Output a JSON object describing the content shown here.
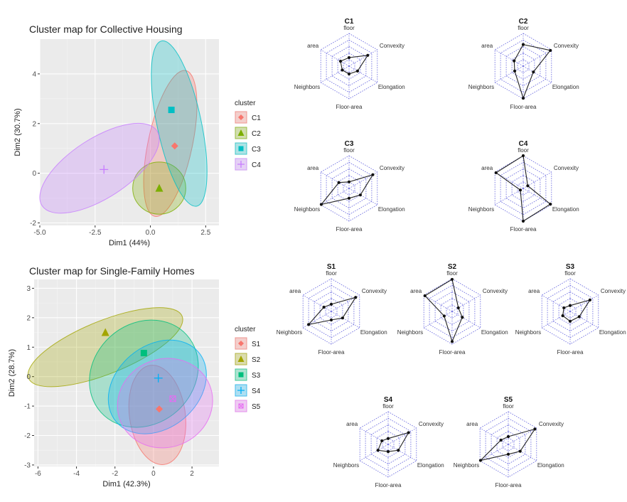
{
  "chart_data": [
    {
      "type": "scatter",
      "id": "collective",
      "title": "Cluster map for Collective Housing",
      "xlabel": "Dim1 (44%)",
      "ylabel": "Dim2 (30.7%)",
      "xlim": [
        -5.0,
        3.1
      ],
      "ylim": [
        -2.1,
        5.4
      ],
      "xticks": [
        -5.0,
        -2.5,
        0.0,
        2.5
      ],
      "xtick_labels": [
        "-5.0",
        "-2.5",
        "0.0",
        "2.5"
      ],
      "yticks": [
        -2,
        0,
        2,
        4
      ],
      "ytick_labels": [
        "-2",
        "0",
        "2",
        "4"
      ],
      "legend_title": "cluster",
      "legend_position": "right",
      "series": [
        {
          "name": "C1",
          "color": "#F8766D",
          "marker": "diamond",
          "centroid": [
            1.1,
            1.1
          ],
          "ellipse": {
            "center": [
              0.9,
              1.2
            ],
            "rx": 1.0,
            "ry": 3.0,
            "angle_deg": 12
          }
        },
        {
          "name": "C2",
          "color": "#7CAE00",
          "marker": "triangle",
          "centroid": [
            0.4,
            -0.6
          ],
          "ellipse": {
            "center": [
              0.4,
              -0.6
            ],
            "rx": 1.2,
            "ry": 1.05,
            "angle_deg": 0
          }
        },
        {
          "name": "C3",
          "color": "#00BFC4",
          "marker": "square",
          "centroid": [
            0.95,
            2.55
          ],
          "ellipse": {
            "center": [
              1.3,
              2.0
            ],
            "rx": 1.0,
            "ry": 3.4,
            "angle_deg": -12
          }
        },
        {
          "name": "C4",
          "color": "#C77CFF",
          "marker": "cross",
          "centroid": [
            -2.1,
            0.15
          ],
          "ellipse": {
            "center": [
              -2.3,
              0.2
            ],
            "rx": 3.1,
            "ry": 1.2,
            "angle_deg": -33
          }
        }
      ]
    },
    {
      "type": "scatter",
      "id": "singlefamily",
      "title": "Cluster map for Single-Family Homes",
      "xlabel": "Dim1 (42.3%)",
      "ylabel": "Dim2 (28.7%)",
      "xlim": [
        -6.2,
        3.4
      ],
      "ylim": [
        -3.05,
        3.3
      ],
      "xticks": [
        -6,
        -4,
        -2,
        0,
        2
      ],
      "xtick_labels": [
        "-6",
        "-4",
        "-2",
        "0",
        "2"
      ],
      "yticks": [
        -3,
        -2,
        -1,
        0,
        1,
        2,
        3
      ],
      "ytick_labels": [
        "-3",
        "-2",
        "-1",
        "0",
        "1",
        "2",
        "3"
      ],
      "legend_title": "cluster",
      "legend_position": "right",
      "series": [
        {
          "name": "S1",
          "color": "#F8766D",
          "marker": "diamond",
          "centroid": [
            0.3,
            -1.1
          ],
          "ellipse": {
            "center": [
              0.2,
              -1.3
            ],
            "rx": 1.45,
            "ry": 1.7,
            "angle_deg": -8
          }
        },
        {
          "name": "S2",
          "color": "#A3A500",
          "marker": "triangle",
          "centroid": [
            -2.5,
            1.5
          ],
          "ellipse": {
            "center": [
              -2.5,
              1.0
            ],
            "rx": 4.3,
            "ry": 0.9,
            "angle_deg": -22
          }
        },
        {
          "name": "S3",
          "color": "#00BF7D",
          "marker": "square",
          "centroid": [
            -0.5,
            0.8
          ],
          "ellipse": {
            "center": [
              -0.5,
              0.1
            ],
            "rx": 3.0,
            "ry": 1.7,
            "angle_deg": -42
          }
        },
        {
          "name": "S4",
          "color": "#00B0F6",
          "marker": "cross",
          "centroid": [
            0.25,
            -0.05
          ],
          "ellipse": {
            "center": [
              0.2,
              -0.35
            ],
            "rx": 2.8,
            "ry": 1.4,
            "angle_deg": -40
          }
        },
        {
          "name": "S5",
          "color": "#E76BF3",
          "marker": "boxcross",
          "centroid": [
            1.0,
            -0.75
          ],
          "ellipse": {
            "center": [
              0.6,
              -0.9
            ],
            "rx": 2.5,
            "ry": 1.5,
            "angle_deg": -22
          }
        }
      ]
    },
    {
      "type": "radar",
      "axes": [
        "floor",
        "Convexity",
        "Elongation",
        "Floor-area",
        "Neighbors",
        "area"
      ],
      "scale_max": 5,
      "charts": [
        {
          "name": "C1",
          "values": [
            1.3,
            3.3,
            1.5,
            1.2,
            1.2,
            1.5
          ]
        },
        {
          "name": "C2",
          "values": [
            3.3,
            4.8,
            1.8,
            4.9,
            1.5,
            1.6
          ]
        },
        {
          "name": "C3",
          "values": [
            1.0,
            4.2,
            2.0,
            1.5,
            4.9,
            1.8
          ]
        },
        {
          "name": "C4",
          "values": [
            5.0,
            0.8,
            4.8,
            5.0,
            0.5,
            4.8
          ]
        },
        {
          "name": "S1",
          "values": [
            1.1,
            4.3,
            2.0,
            1.3,
            4.0,
            1.3
          ]
        },
        {
          "name": "S2",
          "values": [
            4.9,
            1.1,
            1.8,
            4.6,
            1.4,
            4.8
          ]
        },
        {
          "name": "S3",
          "values": [
            0.9,
            3.5,
            1.6,
            1.5,
            1.3,
            1.1
          ]
        },
        {
          "name": "S4",
          "values": [
            0.9,
            3.6,
            1.8,
            1.1,
            1.8,
            1.1
          ]
        },
        {
          "name": "S5",
          "values": [
            1.2,
            4.7,
            2.1,
            1.5,
            4.9,
            1.3
          ]
        }
      ]
    }
  ]
}
